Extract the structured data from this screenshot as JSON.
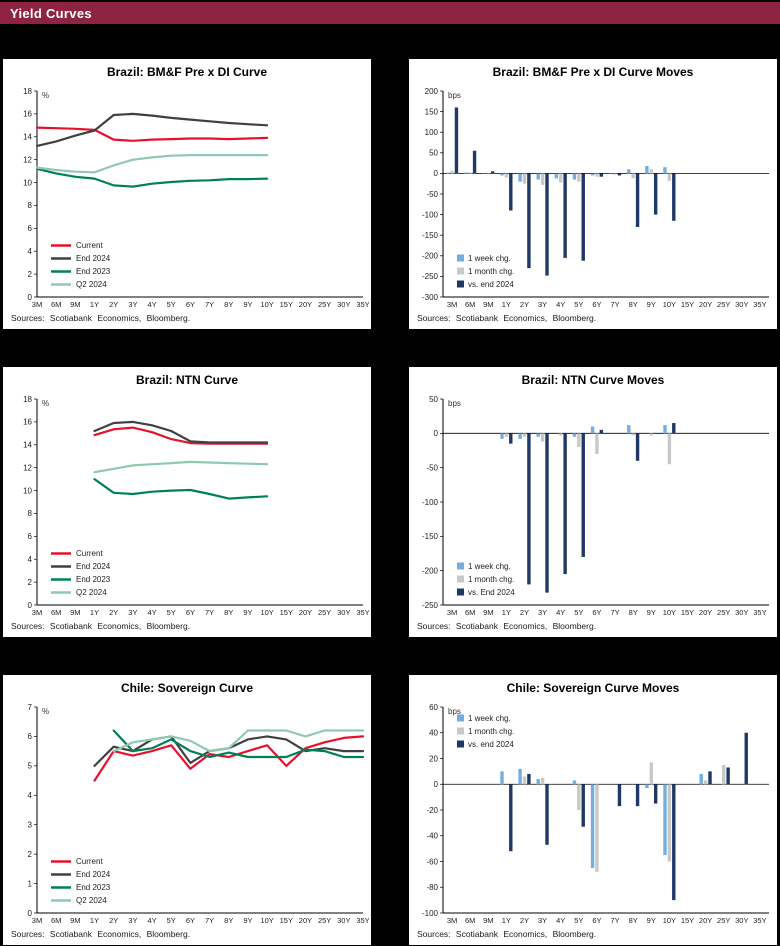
{
  "page": {
    "header_title": "Yield Curves",
    "accent_color": "#8E2344",
    "background_color": "#000000"
  },
  "charts": [
    {
      "title": "Brazil: BM&F Pre x DI Curve",
      "source": "Sources: Scotiabank Economics, Bloomberg.",
      "chart_data": {
        "type": "line",
        "unit": "%",
        "ylim": [
          0,
          18
        ],
        "ytick_step": 2,
        "legend_pos": "bottom-left",
        "categories": [
          "3M",
          "6M",
          "9M",
          "1Y",
          "2Y",
          "3Y",
          "4Y",
          "5Y",
          "6Y",
          "7Y",
          "8Y",
          "9Y",
          "10Y",
          "15Y",
          "20Y",
          "25Y",
          "30Y",
          "35Y"
        ],
        "series": [
          {
            "name": "Current",
            "color": "#E8112D",
            "values": [
              14.8,
              14.75,
              14.7,
              14.6,
              13.75,
              13.65,
              13.75,
              13.8,
              13.85,
              13.85,
              13.8,
              13.85,
              13.9,
              null,
              null,
              null,
              null,
              null
            ]
          },
          {
            "name": "End 2024",
            "color": "#404040",
            "values": [
              13.2,
              13.6,
              14.1,
              14.55,
              15.9,
              16.0,
              15.85,
              15.65,
              15.5,
              15.35,
              15.2,
              15.1,
              15.0,
              null,
              null,
              null,
              null,
              null
            ]
          },
          {
            "name": "End 2023",
            "color": "#00805A",
            "values": [
              11.2,
              10.8,
              10.5,
              10.35,
              9.75,
              9.65,
              9.9,
              10.05,
              10.15,
              10.2,
              10.3,
              10.3,
              10.35,
              null,
              null,
              null,
              null,
              null
            ]
          },
          {
            "name": "Q2 2024",
            "color": "#90C9AC",
            "values": [
              11.3,
              11.1,
              10.95,
              10.9,
              11.5,
              12.0,
              12.2,
              12.35,
              12.4,
              12.4,
              12.4,
              12.4,
              12.4,
              null,
              null,
              null,
              null,
              null
            ]
          }
        ]
      }
    },
    {
      "title": "Brazil: BM&F Pre x DI Curve Moves",
      "source": "Sources: Scotiabank Economics, Bloomberg.",
      "chart_data": {
        "type": "bar",
        "unit": "bps",
        "ylim": [
          -300,
          200
        ],
        "ytick_step": 50,
        "legend_pos": "bottom-left",
        "categories": [
          "3M",
          "6M",
          "9M",
          "1Y",
          "2Y",
          "3Y",
          "4Y",
          "5Y",
          "6Y",
          "7Y",
          "8Y",
          "9Y",
          "10Y",
          "15Y",
          "20Y",
          "25Y",
          "30Y",
          "35Y"
        ],
        "series": [
          {
            "name": "1 week chg.",
            "color": "#74AEDF",
            "values": [
              2,
              2,
              0,
              -5,
              -20,
              -15,
              -12,
              -15,
              -5,
              0,
              10,
              18,
              15,
              null,
              null,
              null,
              null,
              null
            ]
          },
          {
            "name": "1 month chg.",
            "color": "#C8C8C8",
            "values": [
              6,
              2,
              -2,
              -10,
              -25,
              -28,
              -22,
              -20,
              -8,
              -3,
              -12,
              10,
              -18,
              null,
              null,
              null,
              null,
              null
            ]
          },
          {
            "name": "vs. end 2024",
            "color": "#1F3864",
            "values": [
              160,
              55,
              5,
              -90,
              -230,
              -248,
              -205,
              -212,
              -8,
              -5,
              -130,
              -100,
              -115,
              null,
              null,
              null,
              null,
              null
            ]
          }
        ]
      }
    },
    {
      "title": "Brazil: NTN Curve",
      "source": "Sources: Scotiabank Economics, Bloomberg.",
      "chart_data": {
        "type": "line",
        "unit": "%",
        "ylim": [
          0,
          18
        ],
        "ytick_step": 2,
        "legend_pos": "bottom-left",
        "categories": [
          "3M",
          "6M",
          "9M",
          "1Y",
          "2Y",
          "3Y",
          "4Y",
          "5Y",
          "6Y",
          "7Y",
          "8Y",
          "9Y",
          "10Y",
          "15Y",
          "20Y",
          "25Y",
          "30Y",
          "35Y"
        ],
        "series": [
          {
            "name": "Current",
            "color": "#E8112D",
            "values": [
              null,
              null,
              null,
              14.85,
              15.35,
              15.5,
              15.1,
              14.5,
              14.15,
              14.1,
              14.1,
              14.1,
              14.1,
              null,
              null,
              null,
              null,
              null
            ]
          },
          {
            "name": "End 2024",
            "color": "#404040",
            "values": [
              null,
              null,
              null,
              15.2,
              15.9,
              16.0,
              15.7,
              15.2,
              14.3,
              14.2,
              14.2,
              14.2,
              14.2,
              null,
              null,
              null,
              null,
              null
            ]
          },
          {
            "name": "End 2023",
            "color": "#00805A",
            "values": [
              null,
              null,
              null,
              11.0,
              9.8,
              9.7,
              9.9,
              10.0,
              10.05,
              9.7,
              9.3,
              9.4,
              9.5,
              null,
              null,
              null,
              null,
              null
            ]
          },
          {
            "name": "Q2 2024",
            "color": "#90C9AC",
            "values": [
              null,
              null,
              null,
              11.6,
              11.9,
              12.2,
              12.3,
              12.4,
              12.5,
              12.45,
              12.4,
              12.35,
              12.3,
              null,
              null,
              null,
              null,
              null
            ]
          }
        ]
      }
    },
    {
      "title": "Brazil: NTN Curve Moves",
      "source": "Sources: Scotiabank Economics, Bloomberg.",
      "chart_data": {
        "type": "bar",
        "unit": "bps",
        "ylim": [
          -250,
          50
        ],
        "ytick_step": 50,
        "legend_pos": "bottom-left",
        "categories": [
          "3M",
          "6M",
          "9M",
          "1Y",
          "2Y",
          "3Y",
          "4Y",
          "5Y",
          "6Y",
          "7Y",
          "8Y",
          "9Y",
          "10Y",
          "15Y",
          "20Y",
          "25Y",
          "30Y",
          "35Y"
        ],
        "series": [
          {
            "name": "1 week chg.",
            "color": "#74AEDF",
            "values": [
              null,
              null,
              null,
              -8,
              -8,
              -5,
              null,
              -5,
              10,
              null,
              12,
              null,
              12,
              null,
              null,
              null,
              null,
              null
            ]
          },
          {
            "name": "1 month chg.",
            "color": "#C8C8C8",
            "values": [
              null,
              null,
              null,
              -5,
              -5,
              -12,
              -3,
              -20,
              -30,
              null,
              -3,
              -3,
              -45,
              null,
              null,
              null,
              null,
              null
            ]
          },
          {
            "name": "vs. End 2024",
            "color": "#1F3864",
            "values": [
              null,
              null,
              null,
              -15,
              -220,
              -232,
              -205,
              -180,
              5,
              null,
              -40,
              null,
              15,
              null,
              null,
              null,
              null,
              null
            ]
          }
        ]
      }
    },
    {
      "title": "Chile: Sovereign Curve",
      "source": "Sources: Scotiabank Economics, Bloomberg.",
      "chart_data": {
        "type": "line",
        "unit": "%",
        "ylim": [
          0,
          7
        ],
        "ytick_step": 1,
        "legend_pos": "bottom-left",
        "categories": [
          "3M",
          "6M",
          "9M",
          "1Y",
          "2Y",
          "3Y",
          "4Y",
          "5Y",
          "6Y",
          "7Y",
          "8Y",
          "9Y",
          "10Y",
          "15Y",
          "20Y",
          "25Y",
          "30Y",
          "35Y"
        ],
        "series": [
          {
            "name": "Current",
            "color": "#E8112D",
            "values": [
              null,
              null,
              null,
              4.5,
              5.5,
              5.35,
              5.5,
              5.7,
              4.9,
              5.4,
              5.3,
              5.5,
              5.7,
              5.0,
              5.6,
              5.8,
              5.95,
              6.0
            ]
          },
          {
            "name": "End 2024",
            "color": "#404040",
            "values": [
              null,
              null,
              null,
              5.0,
              5.65,
              5.5,
              5.9,
              6.0,
              5.1,
              5.5,
              5.6,
              5.9,
              6.0,
              5.9,
              5.5,
              5.6,
              5.5,
              5.5
            ]
          },
          {
            "name": "End 2023",
            "color": "#00805A",
            "values": [
              null,
              null,
              null,
              null,
              6.2,
              5.5,
              5.6,
              5.9,
              5.5,
              5.3,
              5.45,
              5.3,
              5.3,
              5.3,
              5.55,
              5.5,
              5.3,
              5.3
            ]
          },
          {
            "name": "Q2 2024",
            "color": "#90C9AC",
            "values": [
              null,
              null,
              null,
              null,
              5.5,
              5.8,
              5.9,
              6.0,
              5.85,
              5.5,
              5.6,
              6.2,
              6.2,
              6.2,
              6.0,
              6.2,
              6.2,
              6.2
            ]
          }
        ]
      }
    },
    {
      "title": "Chile: Sovereign Curve Moves",
      "source": "Sources: Scotiabank Economics, Bloomberg.",
      "chart_data": {
        "type": "bar",
        "unit": "bps",
        "ylim": [
          -100,
          60
        ],
        "ytick_step": 20,
        "legend_pos": "top-left",
        "categories": [
          "3M",
          "6M",
          "9M",
          "1Y",
          "2Y",
          "3Y",
          "4Y",
          "5Y",
          "6Y",
          "7Y",
          "8Y",
          "9Y",
          "10Y",
          "15Y",
          "20Y",
          "25Y",
          "30Y",
          "35Y"
        ],
        "series": [
          {
            "name": "1 week chg.",
            "color": "#74AEDF",
            "values": [
              null,
              null,
              null,
              10,
              12,
              4,
              null,
              3,
              -65,
              null,
              null,
              -3,
              -55,
              null,
              8,
              null,
              null,
              null
            ]
          },
          {
            "name": "1 month chg.",
            "color": "#C8C8C8",
            "values": [
              null,
              null,
              null,
              null,
              6,
              5,
              null,
              -20,
              -68,
              null,
              null,
              17,
              -60,
              null,
              3,
              15,
              null,
              null
            ]
          },
          {
            "name": "vs. end 2024",
            "color": "#1F3864",
            "values": [
              null,
              null,
              null,
              -52,
              8,
              -47,
              null,
              -33,
              null,
              -17,
              -17,
              -15,
              -90,
              null,
              10,
              13,
              40,
              null
            ]
          }
        ]
      }
    }
  ]
}
